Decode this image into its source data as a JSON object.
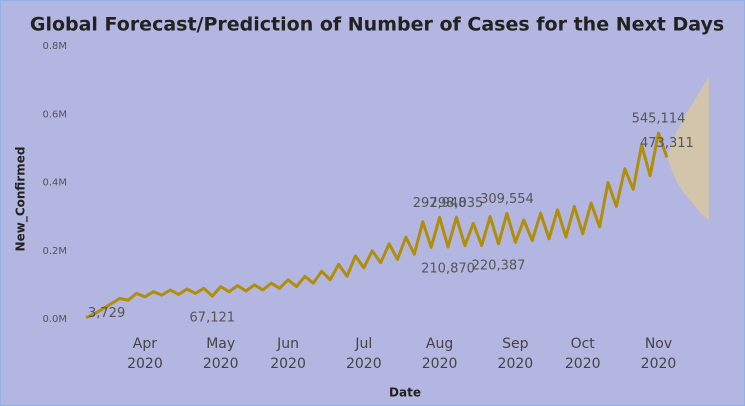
{
  "chart_data": {
    "type": "line",
    "title": "Global Forecast/Prediction of Number of Cases for the Next Days",
    "x_label": "Date",
    "y_label": "New_Confirmed",
    "categories": [
      null,
      null,
      null,
      null,
      null,
      null,
      null,
      "Apr 2020",
      null,
      null,
      null,
      null,
      null,
      null,
      null,
      null,
      "May 2020",
      null,
      null,
      null,
      null,
      null,
      null,
      null,
      "Jun 2020",
      null,
      null,
      null,
      null,
      null,
      null,
      null,
      null,
      "Jul 2020",
      null,
      null,
      null,
      null,
      null,
      null,
      null,
      null,
      "Aug 2020",
      null,
      null,
      null,
      null,
      null,
      null,
      null,
      null,
      "Sep 2020",
      null,
      null,
      null,
      null,
      null,
      null,
      null,
      "Oct 2020",
      null,
      null,
      null,
      null,
      null,
      null,
      null,
      null,
      "Nov 2020",
      null,
      null,
      null,
      null,
      null,
      null
    ],
    "series": [
      {
        "color": "#b08e0a",
        "values": [
          3729,
          15000,
          30000,
          45000,
          60000,
          55000,
          75000,
          65000,
          80000,
          70000,
          85000,
          72000,
          88000,
          75000,
          90000,
          67121,
          95000,
          80000,
          98000,
          82000,
          100000,
          85000,
          105000,
          90000,
          115000,
          95000,
          125000,
          105000,
          140000,
          115000,
          160000,
          125000,
          185000,
          150000,
          200000,
          165000,
          220000,
          175000,
          240000,
          190000,
          285000,
          210000,
          297948,
          210870,
          298035,
          215000,
          280000,
          215000,
          300000,
          220387,
          309554,
          225000,
          290000,
          230000,
          310000,
          235000,
          320000,
          240000,
          330000,
          250000,
          340000,
          270000,
          400000,
          330000,
          440000,
          380000,
          510000,
          420000,
          545114,
          473311,
          null,
          null,
          null,
          null,
          null
        ],
        "value_labels": [
          "3,729",
          null,
          null,
          null,
          null,
          null,
          null,
          null,
          null,
          null,
          null,
          null,
          null,
          null,
          null,
          "67,121",
          null,
          null,
          null,
          null,
          null,
          null,
          null,
          null,
          null,
          null,
          null,
          null,
          null,
          null,
          null,
          null,
          null,
          null,
          null,
          null,
          null,
          null,
          null,
          null,
          null,
          null,
          "297,948",
          "210,870",
          "298,035",
          null,
          null,
          null,
          null,
          "220,387",
          "309,554",
          null,
          null,
          null,
          null,
          null,
          null,
          null,
          null,
          null,
          null,
          null,
          null,
          null,
          null,
          null,
          null,
          null,
          "545,114",
          "473,311",
          null,
          null,
          null,
          null,
          null
        ]
      }
    ],
    "forecast": {
      "color": "#d8c7a2",
      "lower": [
        null,
        null,
        null,
        null,
        null,
        null,
        null,
        null,
        null,
        null,
        null,
        null,
        null,
        null,
        null,
        null,
        null,
        null,
        null,
        null,
        null,
        null,
        null,
        null,
        null,
        null,
        null,
        null,
        null,
        null,
        null,
        null,
        null,
        null,
        null,
        null,
        null,
        null,
        null,
        null,
        null,
        null,
        null,
        null,
        null,
        null,
        null,
        null,
        null,
        null,
        null,
        null,
        null,
        null,
        null,
        null,
        null,
        null,
        null,
        null,
        null,
        null,
        null,
        null,
        null,
        null,
        null,
        null,
        null,
        473311,
        410000,
        370000,
        340000,
        310000,
        290000
      ],
      "upper": [
        null,
        null,
        null,
        null,
        null,
        null,
        null,
        null,
        null,
        null,
        null,
        null,
        null,
        null,
        null,
        null,
        null,
        null,
        null,
        null,
        null,
        null,
        null,
        null,
        null,
        null,
        null,
        null,
        null,
        null,
        null,
        null,
        null,
        null,
        null,
        null,
        null,
        null,
        null,
        null,
        null,
        null,
        null,
        null,
        null,
        null,
        null,
        null,
        null,
        null,
        null,
        null,
        null,
        null,
        null,
        null,
        null,
        null,
        null,
        null,
        null,
        null,
        null,
        null,
        null,
        null,
        null,
        null,
        null,
        473311,
        540000,
        590000,
        630000,
        670000,
        710000
      ]
    },
    "ylim": [
      0,
      800000
    ],
    "yticks": [
      {
        "value": 0,
        "label": "0.0M"
      },
      {
        "value": 200000,
        "label": "0.2M"
      },
      {
        "value": 400000,
        "label": "0.4M"
      },
      {
        "value": 600000,
        "label": "0.6M"
      },
      {
        "value": 800000,
        "label": "0.8M"
      }
    ],
    "grid": false
  }
}
